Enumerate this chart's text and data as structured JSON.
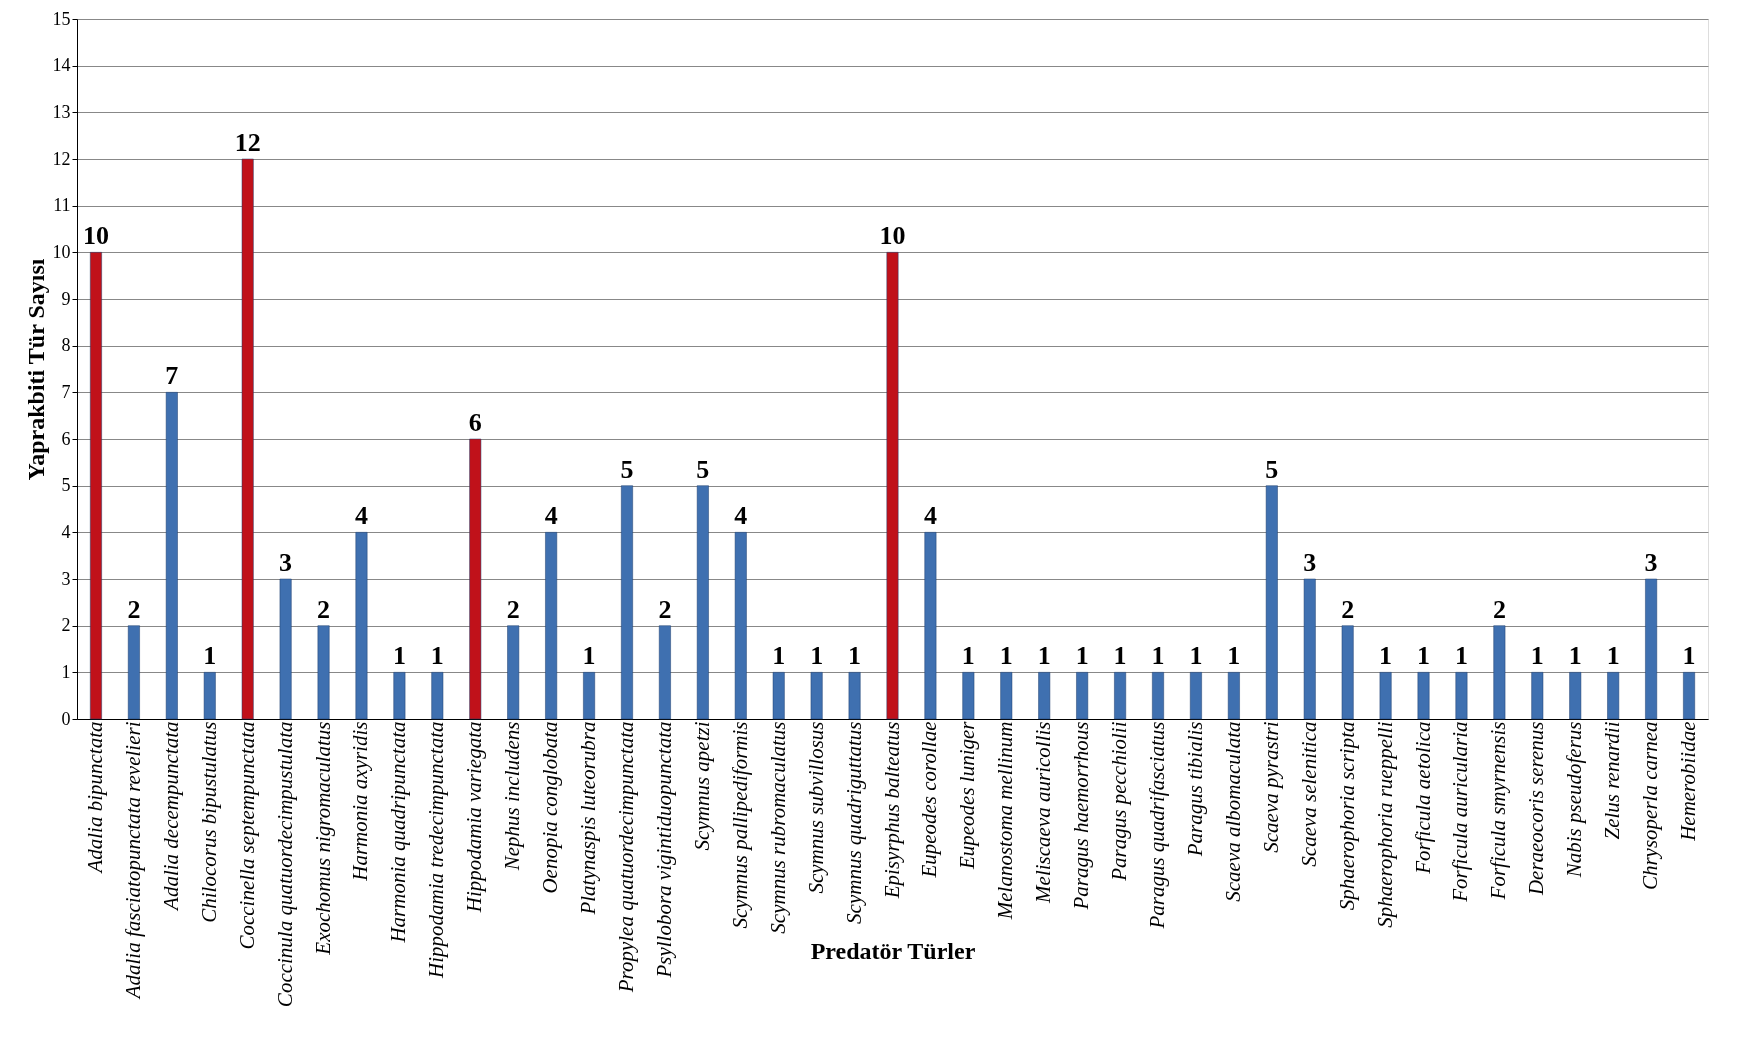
{
  "chart_data": {
    "type": "bar",
    "xlabel": "Predatör Türler",
    "ylabel": "Yaprakbiti Tür Sayısı",
    "categories": [
      "Adalia bipunctata",
      "Adalia fasciatopunctata revelieri",
      "Adalia decempunctata",
      "Chilocorus bipustulatus",
      "Coccinella septempunctata",
      "Coccinula quatuordecimpustulata",
      "Exochomus nigromaculatus",
      "Harmonia axyridis",
      "Harmonia quadripunctata",
      "Hippodamia tredecimpunctata",
      "Hippodamia variegata",
      "Nephus includens",
      "Oenopia conglobata",
      "Platynaspis luteorubra",
      "Propylea quatuordecimpunctata",
      "Psyllobora vigintiduopunctata",
      "Scymnus apetzi",
      "Scymnus pallipediformis",
      "Scymnus rubromaculatus",
      "Scymnus subvillosus",
      "Scymnus quadriguttatus",
      "Episyrphus balteatus",
      "Eupeodes corollae",
      "Eupeodes luniger",
      "Melanostoma mellinum",
      "Meliscaeva auricollis",
      "Paragus haemorrhous",
      "Paragus pecchiolii",
      "Paragus quadrifasciatus",
      "Paragus tibialis",
      "Scaeva albomaculata",
      "Scaeva pyrastri",
      "Scaeva selenitica",
      "Sphaerophoria scripta",
      "Sphaerophoria rueppelli",
      "Forficula aetolica",
      "Forficula auricularia",
      "Forficula smyrnensis",
      "Deraeocoris serenus",
      "Nabis pseudoferus",
      "Zelus renardii",
      "Chrysoperla carnea",
      "Hemerobiidae"
    ],
    "values": [
      10,
      2,
      7,
      1,
      12,
      3,
      2,
      4,
      1,
      1,
      6,
      2,
      4,
      1,
      5,
      2,
      5,
      4,
      1,
      1,
      1,
      10,
      4,
      1,
      1,
      1,
      1,
      1,
      1,
      1,
      1,
      5,
      3,
      2,
      1,
      1,
      1,
      2,
      1,
      1,
      1,
      3,
      1
    ],
    "colors": [
      "#c0111a",
      "#3f70b0",
      "#3f70b0",
      "#3f70b0",
      "#c0111a",
      "#3f70b0",
      "#3f70b0",
      "#3f70b0",
      "#3f70b0",
      "#3f70b0",
      "#c0111a",
      "#3f70b0",
      "#3f70b0",
      "#3f70b0",
      "#3f70b0",
      "#3f70b0",
      "#3f70b0",
      "#3f70b0",
      "#3f70b0",
      "#3f70b0",
      "#3f70b0",
      "#c0111a",
      "#3f70b0",
      "#3f70b0",
      "#3f70b0",
      "#3f70b0",
      "#3f70b0",
      "#3f70b0",
      "#3f70b0",
      "#3f70b0",
      "#3f70b0",
      "#3f70b0",
      "#3f70b0",
      "#3f70b0",
      "#3f70b0",
      "#3f70b0",
      "#3f70b0",
      "#3f70b0",
      "#3f70b0",
      "#3f70b0",
      "#3f70b0",
      "#3f70b0",
      "#3f70b0"
    ],
    "ylim": [
      0,
      15
    ],
    "yticks": [
      0,
      1,
      2,
      3,
      4,
      5,
      6,
      7,
      8,
      9,
      10,
      11,
      12,
      13,
      14,
      15
    ],
    "grid": "y",
    "data_labels": true
  }
}
